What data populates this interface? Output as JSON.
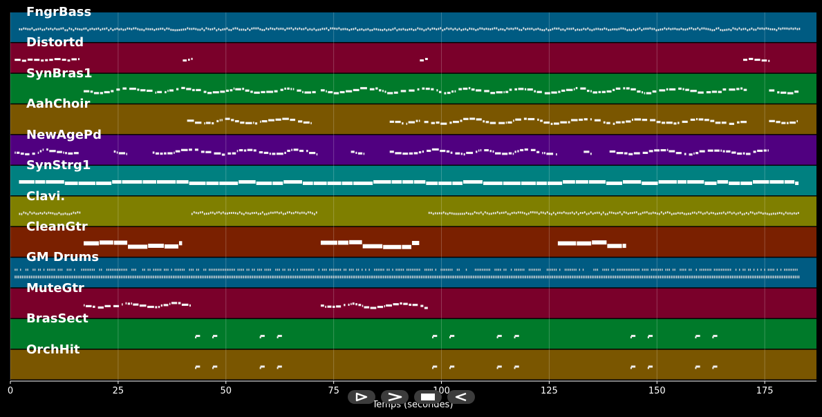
{
  "chart_data": {
    "type": "piano-roll",
    "xlabel": "Temps (secondes)",
    "xlim": [
      0,
      187
    ],
    "xticks": [
      0,
      25,
      50,
      75,
      100,
      125,
      150,
      175
    ],
    "grid": true,
    "tracks": [
      {
        "name": "FngrBass",
        "color": "#005b82",
        "pattern": "dense",
        "segments": [
          [
            2,
            183
          ]
        ]
      },
      {
        "name": "Distortd",
        "color": "#7a002a",
        "pattern": "sparse",
        "segments": [
          [
            1,
            16
          ],
          [
            40,
            42
          ],
          [
            95,
            97
          ],
          [
            170,
            176
          ]
        ]
      },
      {
        "name": "SynBras1",
        "color": "#007a2a",
        "pattern": "phrase",
        "segments": [
          [
            17,
            71
          ],
          [
            72,
            171
          ],
          [
            176,
            183
          ]
        ]
      },
      {
        "name": "AahChoir",
        "color": "#7a5600",
        "pattern": "phrase",
        "segments": [
          [
            41,
            70
          ],
          [
            88,
            95
          ],
          [
            96,
            171
          ],
          [
            176,
            183
          ]
        ]
      },
      {
        "name": "NewAgePd",
        "color": "#500080",
        "pattern": "phrase",
        "segments": [
          [
            1,
            16
          ],
          [
            24,
            27
          ],
          [
            33,
            71
          ],
          [
            79,
            82
          ],
          [
            88,
            127
          ],
          [
            133,
            135
          ],
          [
            139,
            176
          ]
        ]
      },
      {
        "name": "SynStrg1",
        "color": "#008080",
        "pattern": "block",
        "segments": [
          [
            2,
            183
          ]
        ]
      },
      {
        "name": "Clavi.",
        "color": "#7f7f00",
        "pattern": "dense",
        "segments": [
          [
            2,
            16
          ],
          [
            42,
            71
          ],
          [
            97,
            183
          ]
        ]
      },
      {
        "name": "CleanGtr",
        "color": "#7a2000",
        "pattern": "block",
        "segments": [
          [
            17,
            40
          ],
          [
            72,
            95
          ],
          [
            127,
            143
          ]
        ]
      },
      {
        "name": "GM Drums",
        "color": "#005b82",
        "pattern": "drums",
        "segments": [
          [
            1,
            183
          ]
        ]
      },
      {
        "name": "MuteGtr",
        "color": "#7a002a",
        "pattern": "phrase",
        "segments": [
          [
            17,
            42
          ],
          [
            72,
            97
          ]
        ]
      },
      {
        "name": "BrasSect",
        "color": "#007a2a",
        "pattern": "hits",
        "segments": [
          [
            43,
            44
          ],
          [
            47,
            48
          ],
          [
            58,
            59
          ],
          [
            62,
            63
          ],
          [
            98,
            99
          ],
          [
            102,
            103
          ],
          [
            113,
            114
          ],
          [
            117,
            118
          ],
          [
            144,
            145
          ],
          [
            148,
            149
          ],
          [
            159,
            160
          ],
          [
            163,
            164
          ]
        ]
      },
      {
        "name": "OrchHit",
        "color": "#7a5600",
        "pattern": "hits",
        "segments": [
          [
            43,
            44
          ],
          [
            47,
            48
          ],
          [
            58,
            59
          ],
          [
            62,
            63
          ],
          [
            98,
            99
          ],
          [
            102,
            103
          ],
          [
            113,
            114
          ],
          [
            117,
            118
          ],
          [
            144,
            145
          ],
          [
            148,
            149
          ],
          [
            159,
            160
          ],
          [
            163,
            164
          ]
        ]
      }
    ]
  },
  "controls": [
    {
      "name": "play-forward",
      "icon": "play-outline-icon"
    },
    {
      "name": "fast-forward",
      "icon": "chevron-right-icon"
    },
    {
      "name": "stop",
      "icon": "stop-icon"
    },
    {
      "name": "rewind",
      "icon": "play-back-icon"
    }
  ]
}
